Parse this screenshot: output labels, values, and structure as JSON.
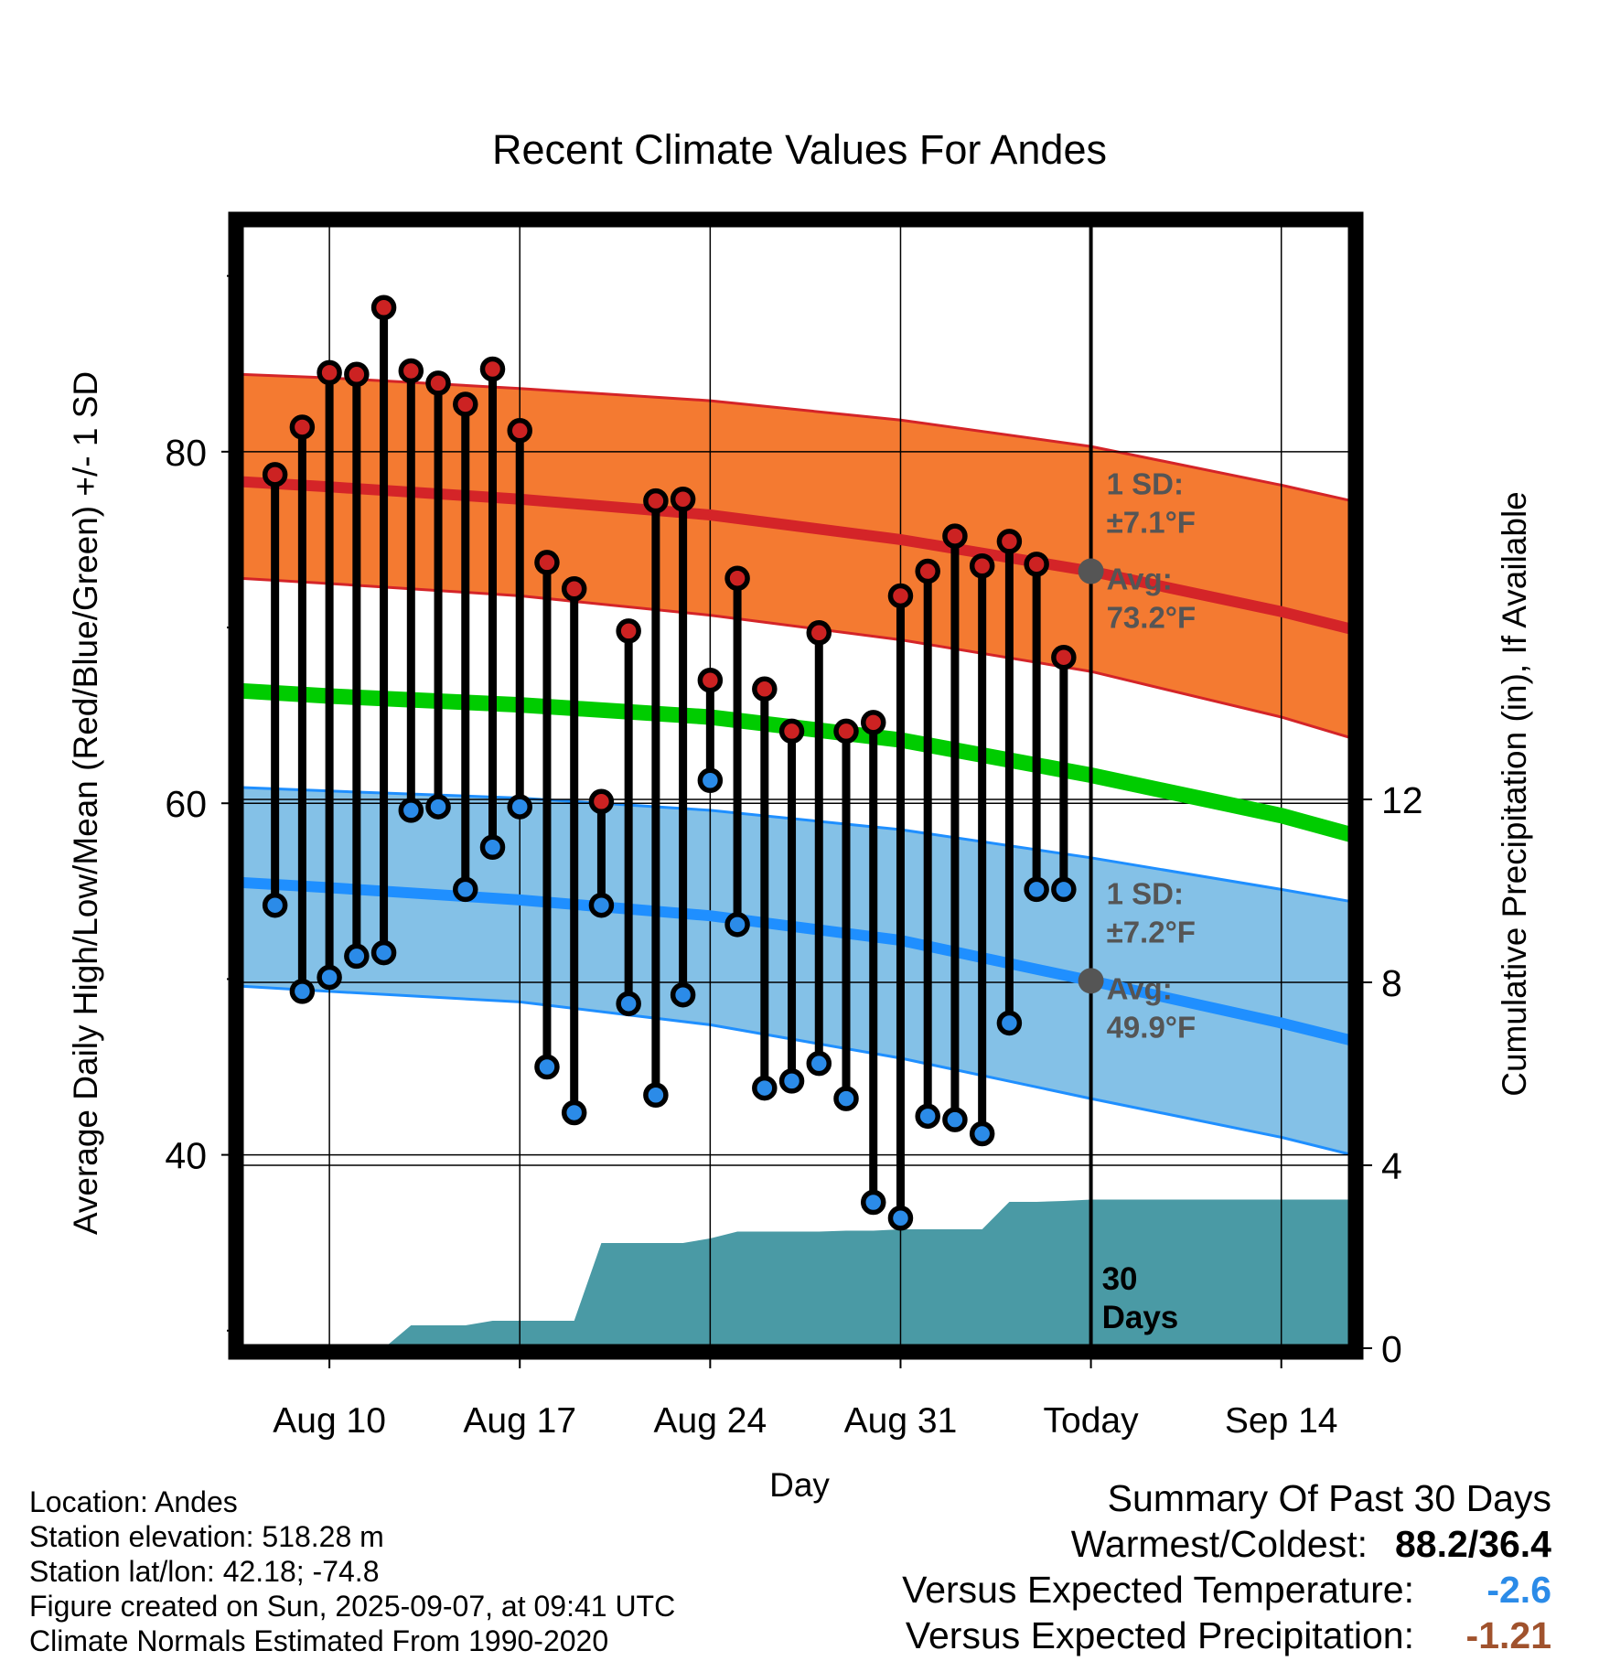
{
  "chart_data": {
    "type": "line",
    "title": "Recent Climate Values For Andes",
    "xlabel": "Day",
    "ylabel": "Average Daily High/Low/Mean (Red/Blue/Green) +/- 1 SD",
    "y2label": "Cumulative Precipitation (in), If Available",
    "ylim": [
      29,
      93
    ],
    "y_ticks": [
      40,
      60,
      80
    ],
    "y2lim": [
      0,
      24.6
    ],
    "y2_ticks": [
      0,
      4,
      8,
      12
    ],
    "x_tick_labels": [
      "Aug 10",
      "Aug 17",
      "Aug 24",
      "Aug 31",
      "Today",
      "Sep 14"
    ],
    "x_tick_days": [
      10,
      17,
      24,
      31,
      38,
      45
    ],
    "x_range_days": [
      6.7,
      47.6
    ],
    "grid": true,
    "legend": "none",
    "today_day": 38,
    "normals": {
      "day": [
        6.7,
        10,
        17,
        24,
        31,
        38,
        45,
        47.6
      ],
      "high_mean": [
        78.3,
        78.0,
        77.3,
        76.4,
        75.0,
        73.2,
        70.9,
        69.9
      ],
      "high_upper": [
        84.4,
        84.2,
        83.6,
        82.9,
        81.8,
        80.3,
        78.1,
        77.2
      ],
      "high_lower": [
        72.8,
        72.5,
        71.8,
        70.7,
        69.3,
        67.5,
        64.9,
        63.7
      ],
      "mean": [
        66.4,
        66.1,
        65.6,
        64.9,
        63.6,
        61.6,
        59.3,
        58.2
      ],
      "low_mean": [
        55.5,
        55.2,
        54.5,
        53.6,
        52.2,
        49.9,
        47.5,
        46.5
      ],
      "low_upper": [
        60.9,
        60.7,
        60.3,
        59.6,
        58.5,
        56.9,
        55.1,
        54.4
      ],
      "low_lower": [
        49.6,
        49.3,
        48.7,
        47.4,
        45.5,
        43.2,
        41.0,
        40.0
      ]
    },
    "series": [
      {
        "name": "High",
        "day": [
          8,
          9,
          10,
          11,
          12,
          13,
          14,
          15,
          16,
          17,
          18,
          19,
          20,
          21,
          22,
          23,
          24,
          25,
          26,
          27,
          28,
          29,
          30,
          31,
          32,
          33,
          34,
          35,
          36,
          37
        ],
        "values": [
          78.7,
          81.4,
          84.5,
          84.4,
          88.2,
          84.6,
          83.9,
          82.7,
          84.7,
          81.2,
          73.7,
          72.2,
          60.1,
          69.8,
          77.2,
          77.3,
          67.0,
          72.8,
          66.5,
          64.1,
          69.7,
          64.1,
          64.6,
          71.8,
          73.2,
          75.2,
          73.5,
          74.9,
          73.6,
          68.3
        ]
      },
      {
        "name": "Low",
        "day": [
          8,
          9,
          10,
          11,
          12,
          13,
          14,
          15,
          16,
          17,
          18,
          19,
          20,
          21,
          22,
          23,
          24,
          25,
          26,
          27,
          28,
          29,
          30,
          31,
          32,
          33,
          34,
          35,
          36,
          37
        ],
        "values": [
          54.2,
          49.3,
          50.1,
          51.3,
          51.5,
          59.6,
          59.8,
          55.1,
          57.5,
          59.8,
          45.0,
          42.4,
          54.2,
          48.6,
          43.4,
          49.1,
          61.3,
          53.1,
          43.8,
          44.2,
          45.2,
          43.2,
          37.3,
          36.4,
          42.2,
          42.0,
          41.2,
          47.5,
          55.1,
          55.1
        ]
      }
    ],
    "precip": {
      "day": [
        6.7,
        9,
        10,
        11,
        12,
        13,
        14,
        15,
        16,
        17,
        18,
        19,
        20,
        21,
        22,
        23,
        24,
        25,
        26,
        27,
        28,
        29,
        30,
        31,
        32,
        33,
        34,
        35,
        36,
        37,
        38,
        47.6
      ],
      "values": [
        0,
        0,
        0,
        0,
        0,
        0.5,
        0.5,
        0.5,
        0.6,
        0.6,
        0.6,
        0.6,
        2.3,
        2.3,
        2.3,
        2.3,
        2.4,
        2.55,
        2.55,
        2.55,
        2.55,
        2.57,
        2.57,
        2.6,
        2.6,
        2.6,
        2.6,
        3.2,
        3.2,
        3.22,
        3.25,
        3.25
      ]
    },
    "annotations": {
      "high_sd": "1 SD:",
      "high_sd_value": "±7.1°F",
      "high_avg": "Avg:",
      "high_avg_value": "73.2°F",
      "low_sd": "1 SD:",
      "low_sd_value": "±7.2°F",
      "low_avg": "Avg:",
      "low_avg_value": "49.9°F",
      "precip_days": "30",
      "precip_days_unit": "Days"
    },
    "colors": {
      "high_band": "#f47a31",
      "high_line": "#d42428",
      "low_band": "#84c1e7",
      "low_line": "#1f8fff",
      "mean_line": "#00cc00",
      "high_dot": "#cc2222",
      "low_dot": "#2b8be8",
      "precip": "#4a9aa5",
      "annotation": "#555555",
      "today_dot": "#555555"
    }
  },
  "info": {
    "location": "Location: Andes",
    "elevation": "Station elevation: 518.28 m",
    "latlon": "Station lat/lon: 42.18; -74.8",
    "created": "Figure created on Sun, 2025-09-07, at 09:41 UTC",
    "normals": "Climate Normals Estimated From 1990-2020"
  },
  "summary": {
    "heading": "Summary Of Past 30 Days",
    "warmest_label": "Warmest/Coldest:",
    "warmest_value": "88.2/36.4",
    "temp_label": "Versus Expected Temperature:",
    "temp_value": "-2.6",
    "temp_color": "#2b8be8",
    "precip_label": "Versus Expected Precipitation:",
    "precip_value": "-1.21",
    "precip_color": "#a0522d"
  }
}
